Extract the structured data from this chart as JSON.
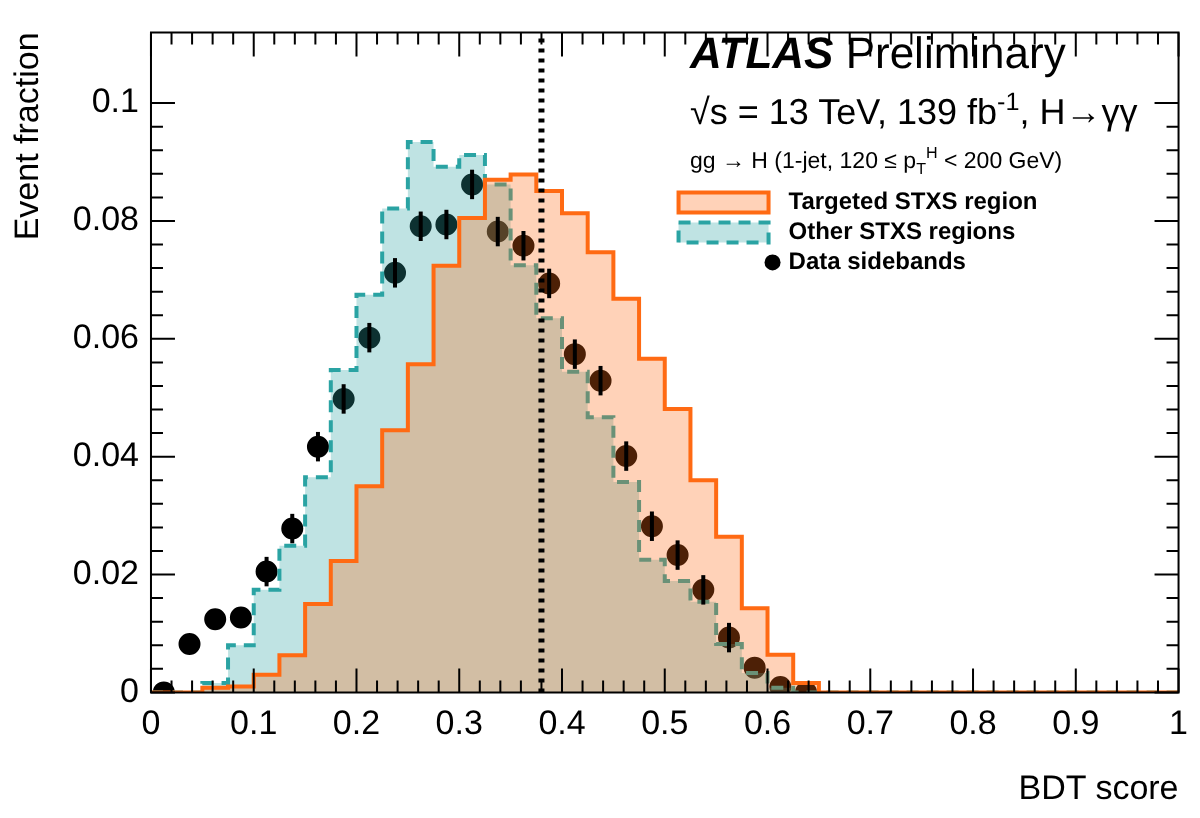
{
  "chart_data": {
    "type": "histogram",
    "title": "ATLAS Preliminary",
    "subtitle": "√s = 13 TeV, 139 fb$^{-1}$, H→γγ",
    "annotations": [
      "gg → H (1-jet, 120 ≤ p$_{T}$$^{H}$ < 200 GeV)"
    ],
    "xlabel": "BDT score",
    "ylabel": "Event fraction",
    "bins": [
      0,
      0.025,
      0.05,
      0.075,
      0.1,
      0.125,
      0.15,
      0.175,
      0.2,
      0.225,
      0.25,
      0.275,
      0.3,
      0.325,
      0.35,
      0.375,
      0.4,
      0.425,
      0.45,
      0.475,
      0.5,
      0.525,
      0.55,
      0.575,
      0.6,
      0.625,
      0.65,
      0.675,
      0.7,
      0.725,
      0.75,
      0.775,
      0.8,
      0.825,
      0.85,
      0.875,
      0.9,
      0.925,
      0.95,
      0.975,
      1
    ],
    "series": [
      {
        "name": "Targeted STXS region",
        "color": "#ff6a13",
        "line_style": "solid",
        "values": [
          0,
          0,
          0.0008,
          0.001,
          0.003,
          0.0063,
          0.015,
          0.0223,
          0.035,
          0.0445,
          0.0557,
          0.0724,
          0.0805,
          0.087,
          0.0879,
          0.0851,
          0.0813,
          0.0747,
          0.0668,
          0.0566,
          0.0481,
          0.036,
          0.0264,
          0.0143,
          0.0064,
          0.0016,
          0,
          0,
          0,
          0,
          0,
          0,
          0,
          0,
          0,
          0,
          0,
          0,
          0,
          0
        ]
      },
      {
        "name": "Other STXS regions",
        "color": "#2aa3a3",
        "line_style": "dashed",
        "values": [
          0,
          0,
          0.0016,
          0.008,
          0.0174,
          0.0249,
          0.0365,
          0.0547,
          0.0675,
          0.0821,
          0.0934,
          0.0892,
          0.0912,
          0.0862,
          0.0725,
          0.0635,
          0.0544,
          0.0467,
          0.0357,
          0.0225,
          0.0189,
          0.0154,
          0.0082,
          0.0033,
          0.0008,
          0,
          0,
          0,
          0,
          0,
          0,
          0,
          0,
          0,
          0,
          0,
          0,
          0,
          0,
          0
        ]
      },
      {
        "name": "Data sidebands",
        "type": "scatter",
        "color": "#000000",
        "marker": "circle",
        "x": [
          0.0125,
          0.0375,
          0.0625,
          0.0875,
          0.1125,
          0.1375,
          0.1625,
          0.1875,
          0.2125,
          0.2375,
          0.2625,
          0.2875,
          0.3125,
          0.3375,
          0.3625,
          0.3875,
          0.4125,
          0.4375,
          0.4625,
          0.4875,
          0.5125,
          0.5375,
          0.5625,
          0.5875,
          0.6125,
          0.6375
        ],
        "values": [
          0,
          0.0082,
          0.0124,
          0.0127,
          0.0205,
          0.0278,
          0.0417,
          0.0498,
          0.0602,
          0.0712,
          0.0791,
          0.0794,
          0.0862,
          0.0782,
          0.0758,
          0.0694,
          0.0574,
          0.0529,
          0.0401,
          0.0282,
          0.0233,
          0.0174,
          0.0093,
          0.0042,
          0.0009,
          0
        ],
        "errors": [
          null,
          null,
          null,
          null,
          0.0025,
          0.0025,
          0.0025,
          0.0025,
          0.0025,
          0.0025,
          0.0025,
          0.0025,
          0.0025,
          0.0025,
          0.0025,
          0.0025,
          0.0025,
          0.0025,
          0.0025,
          0.0025,
          0.0025,
          0.0025,
          0.0025,
          null,
          null,
          null
        ]
      }
    ],
    "ref_lines": [
      {
        "axis": "x",
        "value": 0.38,
        "color": "#000000",
        "line_style": "dotted"
      }
    ],
    "xlim": [
      0,
      1
    ],
    "xticks": [
      0,
      0.1,
      0.2,
      0.3,
      0.4,
      0.5,
      0.6,
      0.7,
      0.8,
      0.9,
      1
    ],
    "ylim": [
      0,
      0.112
    ],
    "yticks": [
      0,
      0.02,
      0.04,
      0.06,
      0.08,
      0.1
    ],
    "grid": false,
    "legend": "top right"
  }
}
